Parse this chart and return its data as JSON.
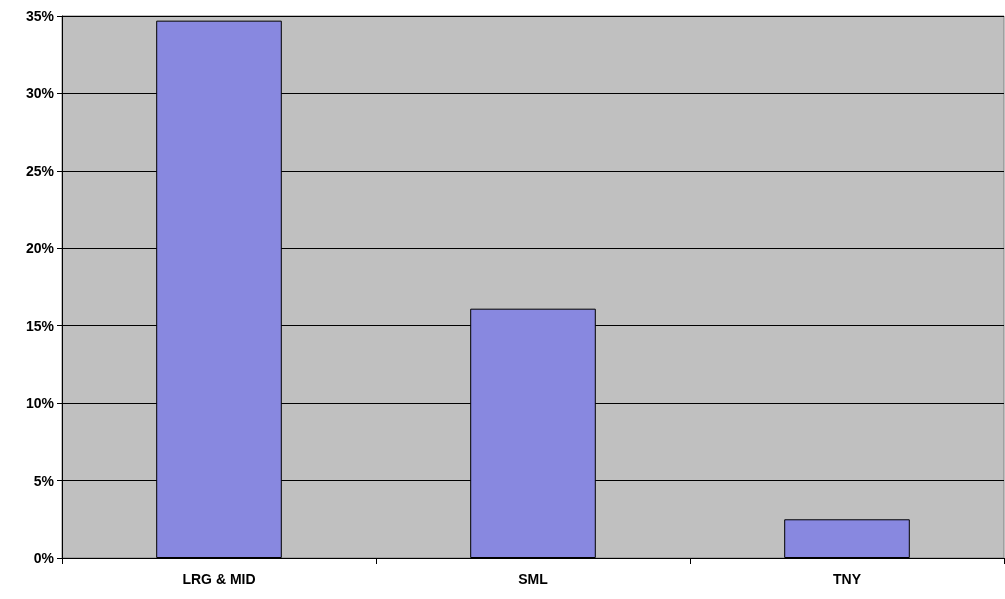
{
  "chart_data": {
    "type": "bar",
    "categories": [
      "LRG & MID",
      "SML",
      "TNY"
    ],
    "values": [
      34.7,
      16.1,
      2.5
    ],
    "color": "#8888e0",
    "ylim": [
      0,
      35
    ],
    "yticks": [
      {
        "value": 0,
        "label": "0%"
      },
      {
        "value": 5,
        "label": "5%"
      },
      {
        "value": 10,
        "label": "10%"
      },
      {
        "value": 15,
        "label": "15%"
      },
      {
        "value": 20,
        "label": "20%"
      },
      {
        "value": 25,
        "label": "25%"
      },
      {
        "value": 30,
        "label": "30%"
      },
      {
        "value": 35,
        "label": "35%"
      }
    ],
    "grid": "y"
  }
}
